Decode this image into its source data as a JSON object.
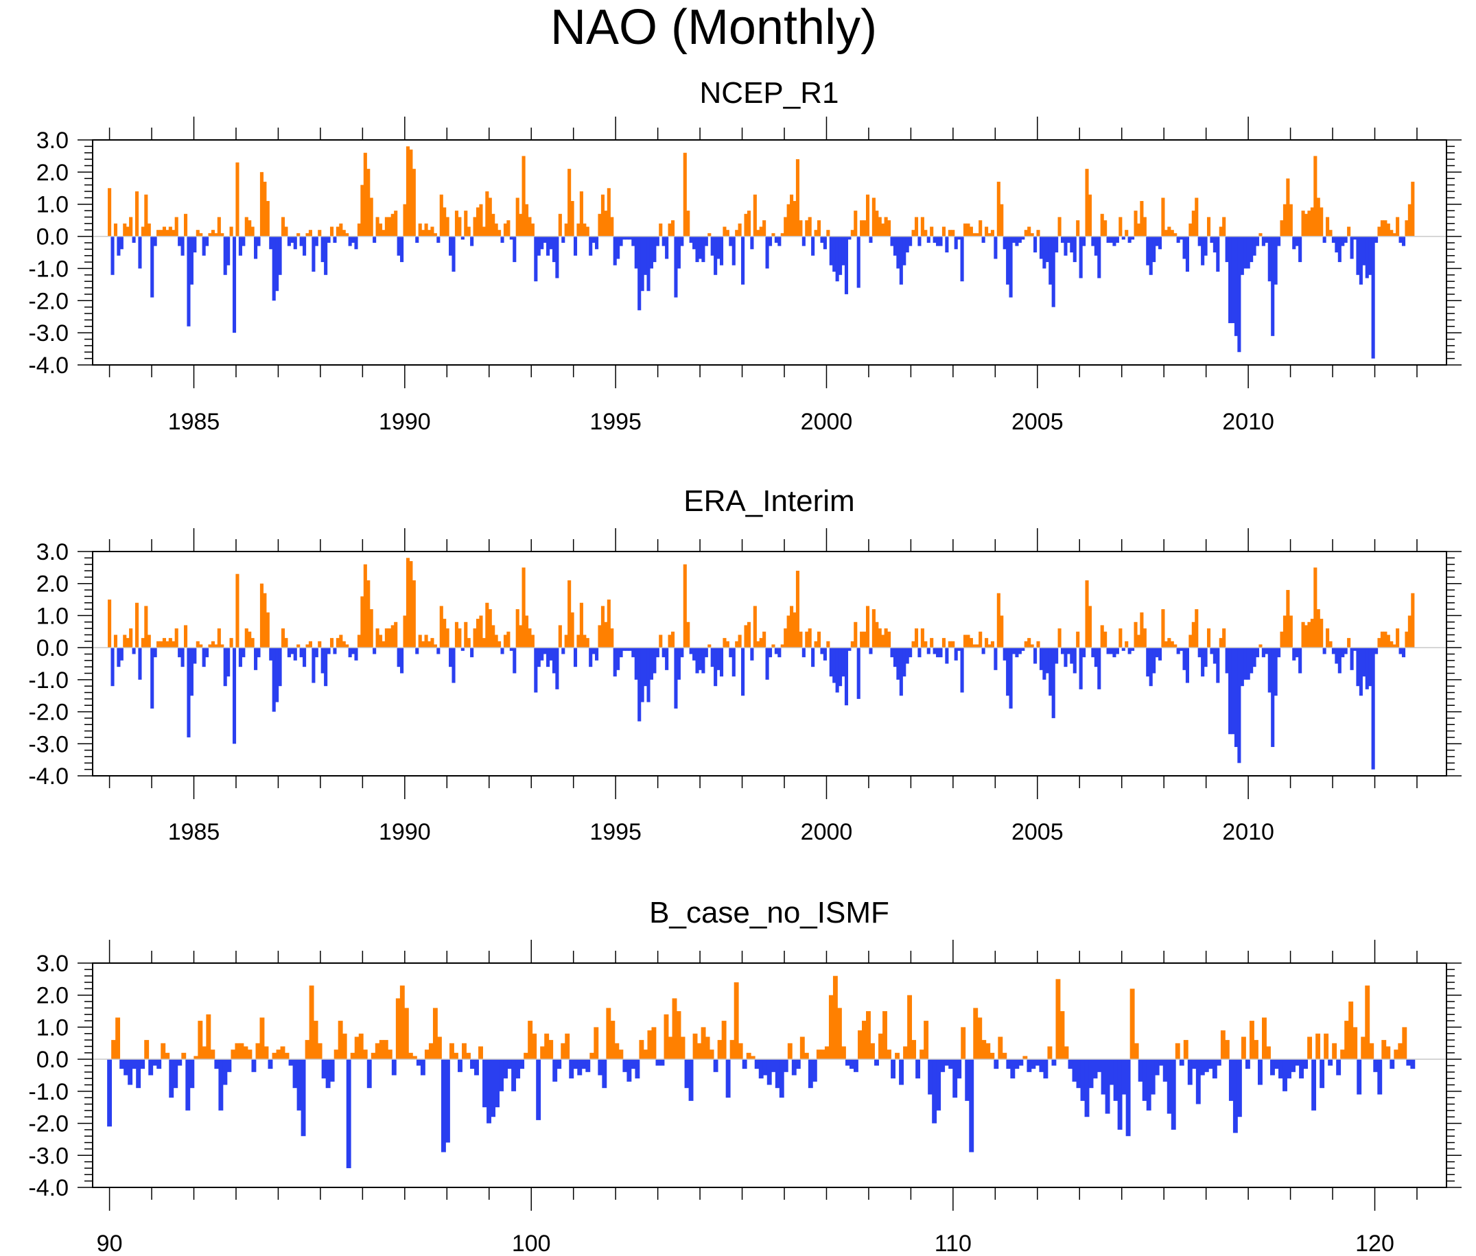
{
  "title": "NAO (Monthly)",
  "colors": {
    "positive": "#ff8000",
    "negative": "#2a3ff0",
    "axis": "#000000",
    "zero_line": "#c8c8c8"
  },
  "y_axis": {
    "ylim": [
      -4.0,
      3.0
    ],
    "tick_values": [
      3.0,
      2.0,
      1.0,
      0.0,
      -1.0,
      -2.0,
      -3.0,
      -4.0
    ],
    "tick_labels": [
      "3.0",
      "2.0",
      "1.0",
      "0.0",
      "-1.0",
      "-2.0",
      "-3.0",
      "-4.0"
    ]
  },
  "chart_data": [
    {
      "type": "area",
      "title": "NCEP_R1",
      "xlabel": "",
      "ylabel": "",
      "x_start": 1983.0,
      "x_end": 2013.9,
      "xlim": [
        1982.6,
        2014.7
      ],
      "x_ticks": [
        1985,
        1990,
        1995,
        2000,
        2005,
        2010
      ],
      "x_tick_labels": [
        "1985",
        "1990",
        "1995",
        "2000",
        "2005",
        "2010"
      ],
      "ylim": [
        -4.0,
        3.0
      ],
      "values": [
        1.5,
        -1.2,
        0.4,
        -0.6,
        -0.4,
        0.4,
        0.3,
        0.6,
        -0.2,
        1.4,
        -1.0,
        0.3,
        1.3,
        0.4,
        -1.9,
        -0.3,
        0.2,
        0.2,
        0.3,
        0.2,
        0.3,
        0.2,
        0.6,
        -0.3,
        -0.6,
        0.7,
        -2.8,
        -1.5,
        -0.5,
        0.2,
        0.1,
        -0.6,
        -0.3,
        0.1,
        0.2,
        0.1,
        0.6,
        0.1,
        -1.2,
        -0.9,
        0.3,
        -3.0,
        2.3,
        -0.6,
        -0.3,
        0.6,
        0.5,
        0.3,
        -0.7,
        -0.3,
        2.0,
        1.7,
        1.1,
        -0.4,
        -2.0,
        -1.7,
        -1.2,
        0.6,
        0.3,
        -0.3,
        -0.2,
        -0.4,
        0.1,
        -0.3,
        -0.6,
        0.1,
        0.2,
        -1.1,
        -0.3,
        0.2,
        -0.8,
        -1.2,
        -0.2,
        0.3,
        -0.2,
        0.3,
        0.4,
        0.2,
        0.1,
        -0.3,
        -0.2,
        -0.4,
        0.4,
        1.6,
        2.6,
        2.1,
        1.2,
        -0.2,
        0.6,
        0.4,
        0.2,
        0.6,
        0.6,
        0.7,
        0.8,
        -0.6,
        -0.8,
        1.0,
        2.8,
        2.7,
        2.1,
        -0.2,
        0.4,
        0.2,
        0.4,
        0.2,
        0.3,
        0.1,
        -0.2,
        1.3,
        0.9,
        0.6,
        -0.6,
        -1.1,
        0.8,
        0.6,
        -0.1,
        0.8,
        0.3,
        -0.3,
        0.6,
        0.9,
        1.0,
        0.3,
        1.4,
        1.2,
        0.7,
        0.4,
        0.2,
        -0.2,
        0.4,
        0.5,
        -0.1,
        -0.8,
        1.2,
        0.7,
        2.5,
        1.0,
        0.6,
        0.4,
        -1.4,
        -0.6,
        -0.4,
        -0.2,
        -0.6,
        -0.4,
        -0.8,
        -1.3,
        0.7,
        -0.2,
        0.4,
        2.1,
        1.1,
        -0.6,
        0.4,
        1.4,
        0.4,
        0.3,
        -0.6,
        -0.2,
        -0.4,
        0.7,
        1.3,
        0.8,
        1.5,
        0.6,
        -0.9,
        -0.7,
        -0.3,
        -0.1,
        -0.1,
        -0.1,
        -0.3,
        -1.0,
        -2.3,
        -1.7,
        -1.2,
        -1.7,
        -1.0,
        -0.8,
        -0.3,
        0.4,
        -0.3,
        -0.7,
        0.4,
        0.5,
        -1.9,
        -1.0,
        -0.3,
        2.6,
        0.8,
        -0.2,
        -0.4,
        -0.8,
        -0.7,
        -0.8,
        -0.3,
        0.1,
        -0.6,
        -1.2,
        -0.7,
        -0.9,
        0.3,
        0.2,
        -0.3,
        -0.9,
        0.2,
        0.4,
        -1.5,
        0.7,
        0.8,
        -0.4,
        1.3,
        0.2,
        0.3,
        0.5,
        -1.0,
        -0.3,
        0.1,
        -0.2,
        -0.3,
        0.1,
        0.6,
        1.0,
        1.3,
        1.1,
        2.4,
        0.5,
        -0.3,
        0.5,
        0.6,
        -0.6,
        0.2,
        0.5,
        -0.2,
        -0.4,
        0.2,
        -0.9,
        -1.1,
        -1.4,
        -1.2,
        -0.9,
        -1.8,
        -0.1,
        0.2,
        0.8,
        -1.6,
        0.5,
        0.5,
        1.3,
        -0.2,
        1.2,
        0.8,
        0.6,
        0.4,
        0.6,
        0.5,
        -0.3,
        -0.6,
        -1.0,
        -1.5,
        -0.9,
        -0.5,
        -0.3,
        0.2,
        0.6,
        -0.3,
        0.6,
        0.2,
        -0.2,
        0.3,
        -0.2,
        -0.3,
        -0.3,
        0.3,
        -0.5,
        0.2,
        0.2,
        -0.4,
        -0.1,
        -1.4,
        0.4,
        0.4,
        0.3,
        0.1,
        0.1,
        0.5,
        -0.2,
        0.3,
        0.1,
        0.2,
        -0.7,
        1.7,
        1.0,
        -0.4,
        -1.5,
        -1.9,
        -0.2,
        -0.3,
        -0.2,
        -0.1,
        0.2,
        0.3,
        0.1,
        -0.5,
        0.2,
        -0.7,
        -1.0,
        -0.8,
        -1.5,
        -2.2,
        -0.5,
        0.6,
        -0.2,
        -0.6,
        -0.2,
        -0.5,
        -0.8,
        0.5,
        -1.3,
        -0.3,
        2.1,
        1.3,
        -0.3,
        -0.6,
        -1.3,
        0.7,
        0.5,
        -0.2,
        -0.2,
        -0.3,
        -0.2,
        0.6,
        -0.1,
        0.2,
        -0.2,
        -0.1,
        0.8,
        0.4,
        1.1,
        0.6,
        -0.9,
        -1.2,
        -0.8,
        -0.3,
        -0.4,
        1.2,
        0.2,
        0.3,
        0.2,
        0.1,
        -0.2,
        -0.1,
        -0.7,
        -1.1,
        0.4,
        0.8,
        1.2,
        -0.3,
        -0.9,
        -0.6,
        0.6,
        -0.2,
        -0.5,
        -1.1,
        0.3,
        0.6,
        -0.8,
        -2.7,
        -2.7,
        -3.1,
        -3.6,
        -1.2,
        -1.0,
        -1.0,
        -0.8,
        -0.6,
        -0.3,
        0.1,
        -0.3,
        -0.2,
        -1.4,
        -3.1,
        -1.5,
        -0.3,
        0.5,
        1.0,
        1.8,
        1.0,
        -0.4,
        -0.3,
        -0.8,
        0.8,
        0.7,
        0.8,
        0.9,
        2.5,
        1.2,
        0.9,
        -0.2,
        0.6,
        0.2,
        -0.2,
        -0.5,
        -0.8,
        -0.3,
        -0.2,
        0.3,
        -0.7,
        -0.1,
        -1.2,
        -1.5,
        -0.9,
        -1.3,
        -1.2,
        -3.8,
        -0.2,
        0.3,
        0.5,
        0.5,
        0.4,
        0.2,
        0.1,
        0.6,
        -0.2,
        -0.3,
        0.5,
        1.0,
        1.7
      ]
    },
    {
      "type": "area",
      "title": "ERA_Interim",
      "xlabel": "",
      "ylabel": "",
      "x_start": 1983.0,
      "x_end": 2013.9,
      "xlim": [
        1982.6,
        2014.7
      ],
      "x_ticks": [
        1985,
        1990,
        1995,
        2000,
        2005,
        2010
      ],
      "x_tick_labels": [
        "1985",
        "1990",
        "1995",
        "2000",
        "2005",
        "2010"
      ],
      "ylim": [
        -4.0,
        3.0
      ],
      "values": [
        1.5,
        -1.2,
        0.4,
        -0.6,
        -0.4,
        0.4,
        0.3,
        0.6,
        -0.2,
        1.4,
        -1.0,
        0.3,
        1.3,
        0.4,
        -1.9,
        -0.3,
        0.2,
        0.2,
        0.3,
        0.2,
        0.3,
        0.2,
        0.6,
        -0.3,
        -0.6,
        0.7,
        -2.8,
        -1.5,
        -0.5,
        0.2,
        0.1,
        -0.6,
        -0.3,
        0.1,
        0.2,
        0.1,
        0.6,
        0.1,
        -1.2,
        -0.9,
        0.3,
        -3.0,
        2.3,
        -0.6,
        -0.3,
        0.6,
        0.5,
        0.3,
        -0.7,
        -0.3,
        2.0,
        1.7,
        1.1,
        -0.4,
        -2.0,
        -1.7,
        -1.2,
        0.6,
        0.3,
        -0.3,
        -0.2,
        -0.4,
        0.1,
        -0.3,
        -0.6,
        0.1,
        0.2,
        -1.1,
        -0.3,
        0.2,
        -0.8,
        -1.2,
        -0.2,
        0.3,
        -0.2,
        0.3,
        0.4,
        0.2,
        0.1,
        -0.3,
        -0.2,
        -0.4,
        0.4,
        1.6,
        2.6,
        2.1,
        1.2,
        -0.2,
        0.6,
        0.4,
        0.2,
        0.6,
        0.6,
        0.7,
        0.8,
        -0.6,
        -0.8,
        1.0,
        2.8,
        2.7,
        2.1,
        -0.2,
        0.4,
        0.2,
        0.4,
        0.2,
        0.3,
        0.1,
        -0.2,
        1.3,
        0.9,
        0.6,
        -0.6,
        -1.1,
        0.8,
        0.6,
        -0.1,
        0.8,
        0.3,
        -0.3,
        0.6,
        0.9,
        1.0,
        0.3,
        1.4,
        1.2,
        0.7,
        0.4,
        0.2,
        -0.2,
        0.4,
        0.5,
        -0.1,
        -0.8,
        1.2,
        0.7,
        2.5,
        1.0,
        0.6,
        0.4,
        -1.4,
        -0.6,
        -0.4,
        -0.2,
        -0.6,
        -0.4,
        -0.8,
        -1.3,
        0.7,
        -0.2,
        0.4,
        2.1,
        1.1,
        -0.6,
        0.4,
        1.4,
        0.4,
        0.3,
        -0.6,
        -0.2,
        -0.4,
        0.7,
        1.3,
        0.8,
        1.5,
        0.6,
        -0.9,
        -0.7,
        -0.3,
        -0.1,
        -0.1,
        -0.1,
        -0.3,
        -1.0,
        -2.3,
        -1.7,
        -1.2,
        -1.7,
        -1.0,
        -0.8,
        -0.3,
        0.4,
        -0.3,
        -0.7,
        0.4,
        0.5,
        -1.9,
        -1.0,
        -0.3,
        2.6,
        0.8,
        -0.2,
        -0.4,
        -0.8,
        -0.7,
        -0.8,
        -0.3,
        0.1,
        -0.6,
        -1.2,
        -0.7,
        -0.9,
        0.3,
        0.2,
        -0.3,
        -0.9,
        0.2,
        0.4,
        -1.5,
        0.7,
        0.8,
        -0.4,
        1.3,
        0.2,
        0.3,
        0.5,
        -1.0,
        -0.3,
        0.1,
        -0.2,
        -0.3,
        0.1,
        0.6,
        1.0,
        1.3,
        1.1,
        2.4,
        0.5,
        -0.3,
        0.5,
        0.6,
        -0.6,
        0.2,
        0.5,
        -0.2,
        -0.4,
        0.2,
        -0.9,
        -1.1,
        -1.4,
        -1.2,
        -0.9,
        -1.8,
        -0.1,
        0.2,
        0.8,
        -1.6,
        0.5,
        0.5,
        1.3,
        -0.2,
        1.2,
        0.8,
        0.6,
        0.4,
        0.6,
        0.5,
        -0.3,
        -0.6,
        -1.0,
        -1.5,
        -0.9,
        -0.5,
        -0.3,
        0.2,
        0.6,
        -0.3,
        0.6,
        0.2,
        -0.2,
        0.3,
        -0.2,
        -0.3,
        -0.3,
        0.3,
        -0.5,
        0.2,
        0.2,
        -0.4,
        -0.1,
        -1.4,
        0.4,
        0.4,
        0.3,
        0.1,
        0.1,
        0.5,
        -0.2,
        0.3,
        0.1,
        0.2,
        -0.7,
        1.7,
        1.0,
        -0.4,
        -1.5,
        -1.9,
        -0.2,
        -0.3,
        -0.2,
        -0.1,
        0.2,
        0.3,
        0.1,
        -0.5,
        0.2,
        -0.7,
        -1.0,
        -0.8,
        -1.5,
        -2.2,
        -0.5,
        0.6,
        -0.2,
        -0.6,
        -0.2,
        -0.5,
        -0.8,
        0.5,
        -1.3,
        -0.3,
        2.1,
        1.3,
        -0.3,
        -0.6,
        -1.3,
        0.7,
        0.5,
        -0.2,
        -0.2,
        -0.3,
        -0.2,
        0.6,
        -0.1,
        0.2,
        -0.2,
        -0.1,
        0.8,
        0.4,
        1.1,
        0.6,
        -0.9,
        -1.2,
        -0.8,
        -0.3,
        -0.4,
        1.2,
        0.2,
        0.3,
        0.2,
        0.1,
        -0.2,
        -0.1,
        -0.7,
        -1.1,
        0.4,
        0.8,
        1.2,
        -0.3,
        -0.9,
        -0.6,
        0.6,
        -0.2,
        -0.5,
        -1.1,
        0.3,
        0.6,
        -0.8,
        -2.7,
        -2.7,
        -3.1,
        -3.6,
        -1.2,
        -1.0,
        -1.0,
        -0.8,
        -0.6,
        -0.3,
        0.1,
        -0.3,
        -0.2,
        -1.4,
        -3.1,
        -1.5,
        -0.3,
        0.5,
        1.0,
        1.8,
        1.0,
        -0.4,
        -0.3,
        -0.8,
        0.8,
        0.7,
        0.8,
        0.9,
        2.5,
        1.2,
        0.9,
        -0.2,
        0.6,
        0.2,
        -0.2,
        -0.5,
        -0.8,
        -0.3,
        -0.2,
        0.3,
        -0.7,
        -0.1,
        -1.2,
        -1.5,
        -0.9,
        -1.3,
        -1.2,
        -3.8,
        -0.2,
        0.3,
        0.5,
        0.5,
        0.4,
        0.2,
        0.1,
        0.6,
        -0.2,
        -0.3,
        0.5,
        1.0,
        1.7
      ]
    },
    {
      "type": "area",
      "title": "B_case_no_ISMF",
      "xlabel": "",
      "ylabel": "",
      "x_start": 90.0,
      "x_end": 120.9,
      "xlim": [
        89.6,
        121.7
      ],
      "x_ticks": [
        90,
        100,
        110,
        120
      ],
      "x_tick_labels": [
        "90",
        "100",
        "110",
        "120"
      ],
      "ylim": [
        -4.0,
        3.0
      ],
      "values": [
        -2.1,
        0.6,
        1.3,
        -0.3,
        -0.5,
        -0.8,
        -0.3,
        -0.9,
        -0.3,
        0.6,
        -0.5,
        -0.2,
        -0.3,
        0.5,
        0.2,
        -1.2,
        -0.9,
        -0.2,
        0.2,
        -1.6,
        -0.9,
        0.1,
        1.2,
        0.4,
        1.4,
        0.3,
        -0.3,
        -1.6,
        -0.8,
        -0.4,
        0.3,
        0.5,
        0.5,
        0.4,
        0.3,
        -0.4,
        0.5,
        1.3,
        0.4,
        -0.3,
        0.2,
        0.3,
        0.4,
        0.2,
        -0.2,
        -0.9,
        -1.6,
        -2.4,
        0.6,
        2.3,
        1.2,
        0.5,
        -0.6,
        -0.9,
        -0.7,
        0.3,
        1.2,
        0.8,
        -3.4,
        0.2,
        0.7,
        0.8,
        0.3,
        -0.9,
        0.2,
        0.5,
        0.6,
        0.6,
        0.3,
        -0.5,
        1.9,
        2.3,
        1.6,
        0.2,
        0.1,
        -0.2,
        -0.5,
        0.3,
        0.5,
        1.6,
        0.7,
        -2.9,
        -2.6,
        0.5,
        0.2,
        -0.4,
        0.5,
        0.2,
        -0.3,
        -0.5,
        0.4,
        -1.5,
        -2.0,
        -1.8,
        -1.5,
        -1.0,
        -0.6,
        -0.3,
        -1.0,
        -0.6,
        -0.3,
        0.2,
        1.2,
        0.8,
        -1.9,
        0.4,
        0.8,
        0.6,
        -0.7,
        -0.3,
        0.5,
        0.8,
        -0.6,
        -0.3,
        -0.5,
        -0.3,
        -0.4,
        0.2,
        1.0,
        -0.5,
        -0.9,
        1.6,
        1.2,
        0.5,
        0.3,
        -0.4,
        -0.7,
        -0.3,
        -0.6,
        0.6,
        0.3,
        0.9,
        1.0,
        -0.2,
        -0.2,
        1.4,
        0.7,
        1.9,
        1.5,
        0.7,
        -0.9,
        -1.3,
        0.8,
        0.5,
        1.0,
        0.7,
        0.3,
        -0.4,
        0.6,
        1.2,
        -1.2,
        0.6,
        2.4,
        0.5,
        -0.3,
        0.2,
        0.1,
        -0.3,
        -0.6,
        -0.5,
        -0.8,
        -0.4,
        -0.9,
        -1.2,
        -0.4,
        0.5,
        -0.5,
        -0.3,
        0.7,
        0.2,
        -0.9,
        -0.7,
        0.3,
        0.3,
        0.4,
        2.0,
        2.6,
        1.6,
        0.4,
        -0.2,
        -0.3,
        -0.4,
        0.9,
        1.2,
        1.5,
        0.5,
        -0.2,
        0.8,
        1.5,
        0.3,
        -0.6,
        0.2,
        -0.8,
        0.4,
        2.0,
        0.6,
        -0.6,
        0.3,
        1.2,
        -1.1,
        -2.0,
        -1.6,
        -0.4,
        -0.2,
        -0.3,
        -1.2,
        -0.6,
        1.0,
        -1.3,
        -2.9,
        1.6,
        1.3,
        0.6,
        0.5,
        0.2,
        -0.3,
        0.7,
        0.2,
        -0.3,
        -0.6,
        -0.3,
        -0.2,
        0.1,
        -0.4,
        -0.3,
        -0.2,
        -0.4,
        -0.6,
        0.4,
        -0.2,
        2.5,
        1.5,
        0.4,
        -0.3,
        -0.7,
        -0.9,
        -1.3,
        -1.8,
        -0.9,
        -0.6,
        -0.4,
        -1.1,
        -1.7,
        -0.8,
        -1.3,
        -2.2,
        -1.1,
        -2.4,
        2.2,
        0.5,
        -0.7,
        -1.3,
        -1.6,
        -1.1,
        -0.5,
        -0.2,
        -0.7,
        -1.7,
        -2.2,
        0.5,
        -0.2,
        0.6,
        -0.8,
        -0.3,
        -1.4,
        -0.5,
        -0.4,
        -0.3,
        -0.6,
        -0.2,
        0.9,
        0.6,
        -1.3,
        -2.3,
        -1.8,
        0.7,
        -0.3,
        1.2,
        0.6,
        -0.8,
        1.3,
        0.4,
        -0.5,
        -0.3,
        -0.6,
        -1.0,
        -0.6,
        -0.4,
        -0.2,
        -0.6,
        -0.3,
        0.7,
        -1.6,
        0.8,
        -0.9,
        0.8,
        -0.2,
        0.5,
        -0.5,
        0.3,
        1.2,
        1.8,
        1.0,
        -1.1,
        0.7,
        2.3,
        0.5,
        -0.4,
        -1.1,
        0.6,
        0.4,
        -0.3,
        0.3,
        0.5,
        1.0,
        -0.2,
        -0.3
      ]
    }
  ]
}
